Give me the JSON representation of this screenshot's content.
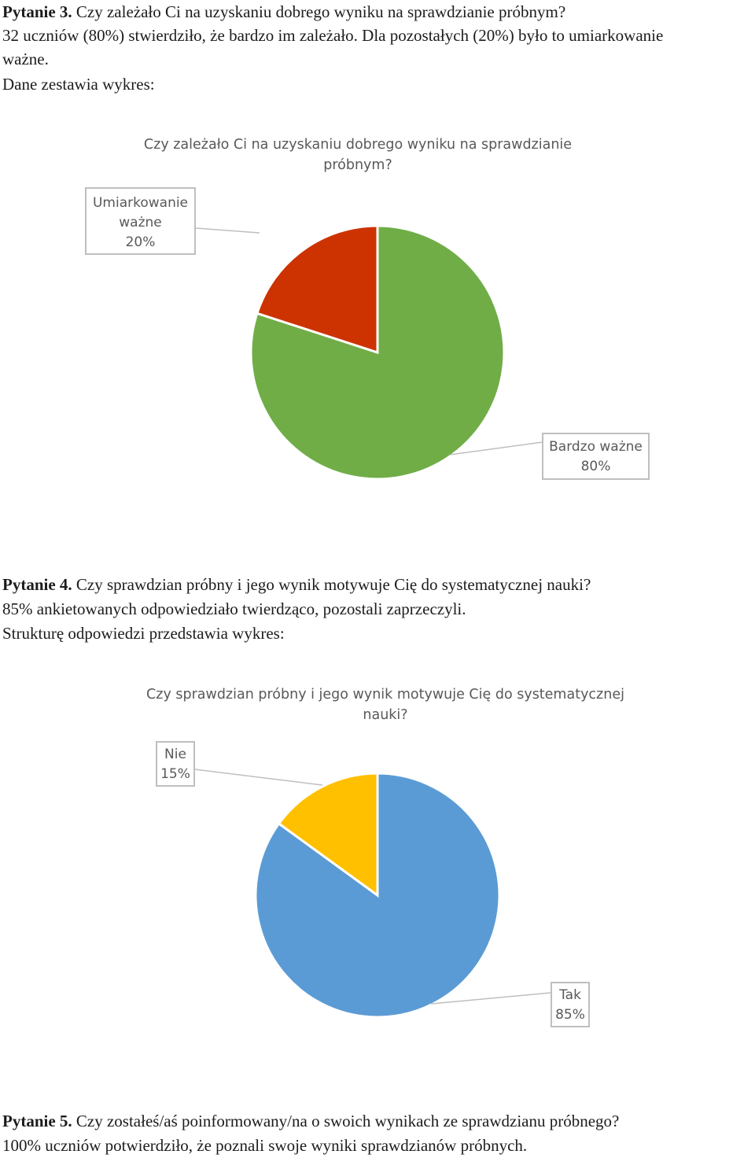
{
  "q3": {
    "heading_bold": "Pytanie 3.",
    "heading_rest": " Czy zależało Ci na uzyskaniu dobrego wyniku na sprawdzianie próbnym?",
    "line2": "32 uczniów (80%) stwierdziło, że bardzo im zależało. Dla pozostałych (20%) było to umiarkowanie",
    "line3": "ważne.",
    "line4": "Dane zestawia wykres:"
  },
  "q4": {
    "heading_bold": "Pytanie 4.",
    "heading_rest": " Czy sprawdzian próbny i jego wynik motywuje Cię do systematycznej nauki?",
    "line2": "85% ankietowanych odpowiedziało twierdząco, pozostali zaprzeczyli.",
    "line3": "Strukturę odpowiedzi przedstawia wykres:"
  },
  "q5": {
    "heading_bold": "Pytanie 5.",
    "heading_rest": " Czy zostałeś/aś poinformowany/na o swoich wynikach ze sprawdzianu próbnego?",
    "line2": "100% uczniów potwierdziło, że poznali swoje wyniki sprawdzianów próbnych."
  },
  "chart_data": [
    {
      "type": "pie",
      "title_line1": "Czy zależało Ci na uzyskaniu dobrego wyniku na sprawdzianie",
      "title_line2": "próbnym?",
      "slices": [
        {
          "label_line1": "Bardzo ważne",
          "label_line2": "",
          "pct_label": "80%",
          "value": 80,
          "color": "#70ad47"
        },
        {
          "label_line1": "Umiarkowanie",
          "label_line2": "ważne",
          "pct_label": "20%",
          "value": 20,
          "color": "#cc3300"
        }
      ]
    },
    {
      "type": "pie",
      "title_line1": "Czy sprawdzian próbny i jego wynik motywuje Cię do systematycznej",
      "title_line2": "nauki?",
      "slices": [
        {
          "label_line1": "Tak",
          "label_line2": "",
          "pct_label": "85%",
          "value": 85,
          "color": "#5b9bd5"
        },
        {
          "label_line1": "Nie",
          "label_line2": "",
          "pct_label": "15%",
          "value": 15,
          "color": "#ffc000"
        }
      ]
    }
  ]
}
